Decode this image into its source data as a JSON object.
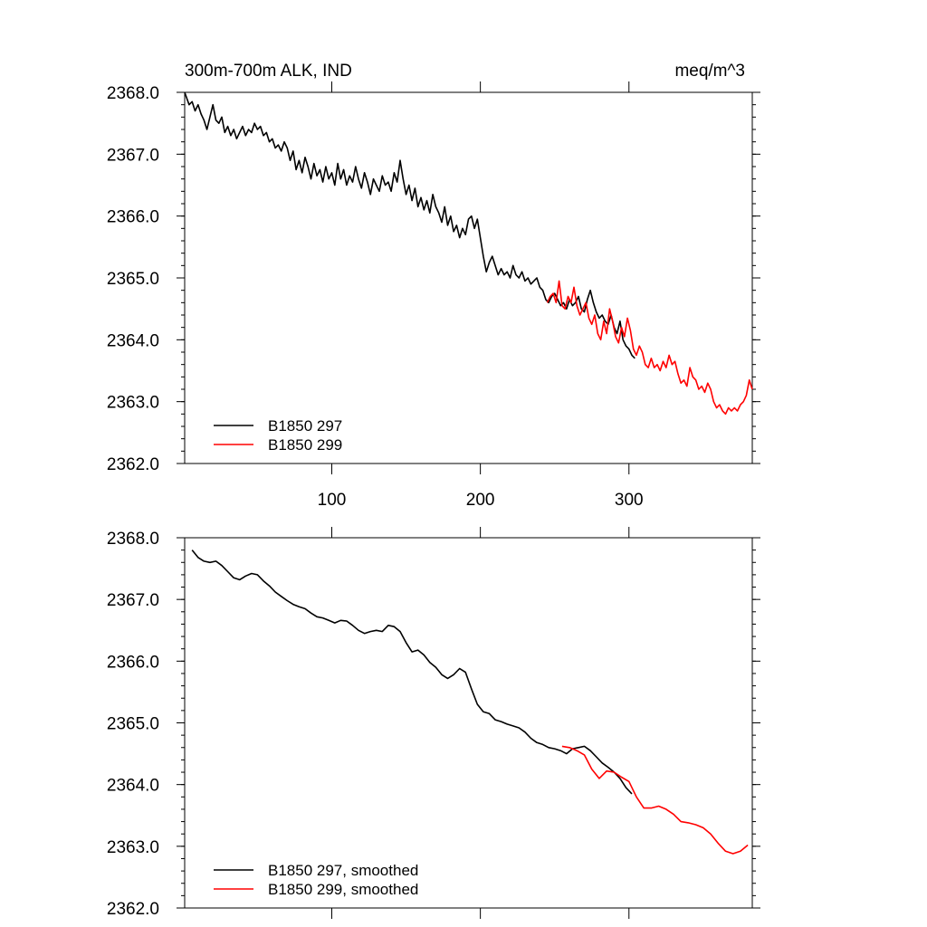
{
  "chart_data": [
    {
      "type": "line",
      "title_left": "300m-700m ALK, IND",
      "title_right": "meq/m^3",
      "xlim": [
        1,
        383
      ],
      "ylim": [
        2362.0,
        2368.0
      ],
      "x_ticks": [
        100,
        200,
        300
      ],
      "x_tick_labels": [
        "100",
        "200",
        "300"
      ],
      "y_ticks": [
        2362.0,
        2363.0,
        2364.0,
        2365.0,
        2366.0,
        2367.0,
        2368.0
      ],
      "y_tick_labels": [
        "2362.0",
        "2363.0",
        "2364.0",
        "2365.0",
        "2366.0",
        "2367.0",
        "2368.0"
      ],
      "legend_position": "bottom-left",
      "series": [
        {
          "name": "B1850 297",
          "color": "#000000",
          "x": [
            1,
            4,
            6,
            8,
            10,
            12,
            14,
            16,
            18,
            20,
            22,
            24,
            26,
            28,
            30,
            32,
            34,
            36,
            38,
            40,
            42,
            44,
            46,
            48,
            50,
            52,
            54,
            56,
            58,
            60,
            62,
            64,
            66,
            68,
            70,
            72,
            74,
            76,
            78,
            80,
            82,
            84,
            86,
            88,
            90,
            92,
            94,
            96,
            98,
            100,
            102,
            104,
            106,
            108,
            110,
            112,
            114,
            116,
            118,
            120,
            122,
            124,
            126,
            128,
            130,
            132,
            134,
            136,
            138,
            140,
            142,
            144,
            146,
            148,
            150,
            152,
            154,
            156,
            158,
            160,
            162,
            164,
            166,
            168,
            170,
            172,
            174,
            176,
            178,
            180,
            182,
            184,
            186,
            188,
            190,
            192,
            194,
            196,
            198,
            200,
            202,
            204,
            206,
            208,
            210,
            212,
            214,
            216,
            218,
            220,
            222,
            224,
            226,
            228,
            230,
            232,
            234,
            236,
            238,
            240,
            242,
            244,
            246,
            248,
            250,
            252,
            254,
            256,
            258,
            260,
            262,
            264,
            266,
            268,
            270,
            272,
            274,
            276,
            278,
            280,
            282,
            284,
            286,
            288,
            290,
            292,
            294,
            296,
            298,
            300,
            302,
            304
          ],
          "y": [
            2368.0,
            2367.8,
            2367.85,
            2367.7,
            2367.8,
            2367.65,
            2367.55,
            2367.4,
            2367.6,
            2367.8,
            2367.55,
            2367.5,
            2367.6,
            2367.35,
            2367.45,
            2367.3,
            2367.4,
            2367.25,
            2367.35,
            2367.45,
            2367.3,
            2367.4,
            2367.35,
            2367.5,
            2367.4,
            2367.45,
            2367.3,
            2367.35,
            2367.2,
            2367.25,
            2367.1,
            2367.15,
            2367.05,
            2367.2,
            2367.1,
            2366.9,
            2367.05,
            2366.75,
            2366.9,
            2366.7,
            2366.95,
            2366.8,
            2366.6,
            2366.85,
            2366.65,
            2366.75,
            2366.55,
            2366.8,
            2366.6,
            2366.7,
            2366.5,
            2366.85,
            2366.6,
            2366.75,
            2366.5,
            2366.65,
            2366.55,
            2366.8,
            2366.6,
            2366.45,
            2366.7,
            2366.55,
            2366.35,
            2366.6,
            2366.5,
            2366.4,
            2366.65,
            2366.5,
            2366.55,
            2366.4,
            2366.7,
            2366.55,
            2366.9,
            2366.6,
            2366.35,
            2366.5,
            2366.25,
            2366.45,
            2366.15,
            2366.3,
            2366.1,
            2366.25,
            2366.05,
            2366.35,
            2366.15,
            2366.05,
            2365.9,
            2366.15,
            2365.85,
            2366.0,
            2365.75,
            2365.85,
            2365.65,
            2365.8,
            2365.7,
            2365.95,
            2366.0,
            2365.8,
            2365.95,
            2365.65,
            2365.35,
            2365.1,
            2365.25,
            2365.35,
            2365.2,
            2365.05,
            2365.15,
            2365.05,
            2365.1,
            2365.0,
            2365.2,
            2365.05,
            2365.0,
            2365.1,
            2364.95,
            2365.0,
            2364.9,
            2364.95,
            2365.0,
            2364.85,
            2364.8,
            2364.65,
            2364.6,
            2364.7,
            2364.75,
            2364.65,
            2364.55,
            2364.6,
            2364.5,
            2364.65,
            2364.55,
            2364.6,
            2364.7,
            2364.5,
            2364.45,
            2364.65,
            2364.8,
            2364.6,
            2364.45,
            2364.35,
            2364.4,
            2364.3,
            2364.25,
            2364.4,
            2364.2,
            2364.1,
            2364.3,
            2364.0,
            2363.9,
            2363.85,
            2363.75,
            2363.7
          ]
        },
        {
          "name": "B1850 299",
          "color": "#ff0000",
          "x": [
            245,
            247,
            249,
            251,
            253,
            255,
            257,
            259,
            261,
            263,
            265,
            267,
            269,
            271,
            273,
            275,
            277,
            279,
            281,
            283,
            285,
            287,
            289,
            291,
            293,
            295,
            297,
            299,
            301,
            303,
            305,
            307,
            309,
            311,
            313,
            315,
            317,
            319,
            321,
            323,
            325,
            327,
            329,
            331,
            333,
            335,
            337,
            339,
            341,
            343,
            345,
            347,
            349,
            351,
            353,
            355,
            357,
            359,
            361,
            363,
            365,
            367,
            369,
            371,
            373,
            375,
            377,
            379,
            381,
            383
          ],
          "y": [
            2364.6,
            2364.7,
            2364.75,
            2364.6,
            2364.95,
            2364.55,
            2364.5,
            2364.7,
            2364.6,
            2364.85,
            2364.55,
            2364.4,
            2364.5,
            2364.6,
            2364.35,
            2364.25,
            2364.4,
            2364.1,
            2364.0,
            2364.3,
            2364.1,
            2364.5,
            2364.3,
            2364.05,
            2363.95,
            2364.2,
            2364.05,
            2364.35,
            2364.15,
            2363.85,
            2363.75,
            2363.9,
            2363.8,
            2363.6,
            2363.55,
            2363.7,
            2363.55,
            2363.6,
            2363.5,
            2363.65,
            2363.55,
            2363.75,
            2363.6,
            2363.65,
            2363.45,
            2363.3,
            2363.35,
            2363.25,
            2363.55,
            2363.4,
            2363.35,
            2363.2,
            2363.25,
            2363.15,
            2363.3,
            2363.2,
            2363.0,
            2362.9,
            2362.95,
            2362.85,
            2362.8,
            2362.9,
            2362.85,
            2362.9,
            2362.85,
            2362.95,
            2363.0,
            2363.1,
            2363.35,
            2363.2
          ]
        }
      ]
    },
    {
      "type": "line",
      "xlim": [
        1,
        383
      ],
      "ylim": [
        2362.0,
        2368.0
      ],
      "x_ticks": [
        100,
        200,
        300
      ],
      "x_tick_labels": [],
      "y_ticks": [
        2362.0,
        2363.0,
        2364.0,
        2365.0,
        2366.0,
        2367.0,
        2368.0
      ],
      "y_tick_labels": [
        "2362.0",
        "2363.0",
        "2364.0",
        "2365.0",
        "2366.0",
        "2367.0",
        "2368.0"
      ],
      "legend_position": "bottom-left",
      "series": [
        {
          "name": "B1850 297, smoothed",
          "color": "#000000",
          "x": [
            6,
            10,
            14,
            18,
            22,
            26,
            30,
            34,
            38,
            42,
            46,
            50,
            54,
            58,
            62,
            66,
            70,
            74,
            78,
            82,
            86,
            90,
            94,
            98,
            102,
            106,
            110,
            114,
            118,
            122,
            126,
            130,
            134,
            138,
            142,
            146,
            150,
            154,
            158,
            162,
            166,
            170,
            174,
            178,
            182,
            186,
            190,
            194,
            198,
            202,
            206,
            210,
            214,
            218,
            222,
            226,
            230,
            234,
            238,
            242,
            246,
            250,
            254,
            258,
            262,
            266,
            270,
            274,
            278,
            282,
            286,
            290,
            294,
            298,
            302
          ],
          "y": [
            2367.8,
            2367.68,
            2367.62,
            2367.6,
            2367.62,
            2367.55,
            2367.45,
            2367.35,
            2367.32,
            2367.38,
            2367.42,
            2367.4,
            2367.3,
            2367.22,
            2367.12,
            2367.05,
            2366.98,
            2366.92,
            2366.88,
            2366.85,
            2366.78,
            2366.72,
            2366.7,
            2366.66,
            2366.62,
            2366.66,
            2366.65,
            2366.58,
            2366.5,
            2366.45,
            2366.48,
            2366.5,
            2366.48,
            2366.58,
            2366.56,
            2366.48,
            2366.3,
            2366.15,
            2366.18,
            2366.1,
            2365.98,
            2365.9,
            2365.78,
            2365.72,
            2365.78,
            2365.88,
            2365.82,
            2365.55,
            2365.3,
            2365.18,
            2365.15,
            2365.05,
            2365.02,
            2364.98,
            2364.95,
            2364.92,
            2364.85,
            2364.75,
            2364.68,
            2364.65,
            2364.6,
            2364.58,
            2364.55,
            2364.5,
            2364.58,
            2364.6,
            2364.62,
            2364.55,
            2364.45,
            2364.35,
            2364.28,
            2364.2,
            2364.1,
            2363.95,
            2363.85
          ]
        },
        {
          "name": "B1850 299, smoothed",
          "color": "#ff0000",
          "x": [
            255,
            260,
            265,
            270,
            275,
            280,
            285,
            290,
            295,
            300,
            305,
            310,
            315,
            320,
            325,
            330,
            335,
            340,
            345,
            350,
            355,
            360,
            365,
            370,
            375,
            380
          ],
          "y": [
            2364.62,
            2364.6,
            2364.55,
            2364.48,
            2364.25,
            2364.1,
            2364.22,
            2364.2,
            2364.12,
            2364.05,
            2363.8,
            2363.62,
            2363.62,
            2363.65,
            2363.6,
            2363.52,
            2363.4,
            2363.38,
            2363.35,
            2363.3,
            2363.2,
            2363.05,
            2362.92,
            2362.88,
            2362.92,
            2363.02
          ]
        }
      ]
    }
  ]
}
